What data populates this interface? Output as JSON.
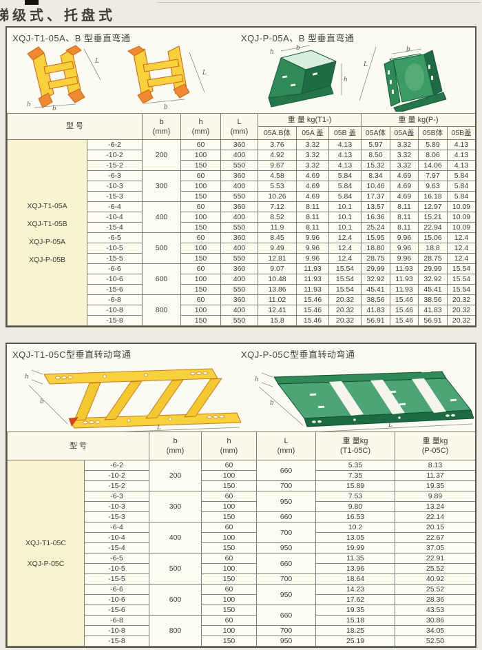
{
  "page": {
    "title": "梯级式、托盘式"
  },
  "dim_labels": {
    "L": "L",
    "b": "b",
    "h": "h"
  },
  "section1": {
    "left_title": "XQJ-T1-05A、B 型垂直弯通",
    "right_title": "XQJ-P-05A、B 型垂直弯通"
  },
  "table1": {
    "headers": {
      "model": "型  号",
      "b": [
        "b",
        "(mm)"
      ],
      "h": [
        "h",
        "(mm)"
      ],
      "L": [
        "L",
        "(mm)"
      ],
      "t1_group": "重 量 kg(T1-)",
      "t1_cols": [
        "05A.B体",
        "05A 盖",
        "05B 盖"
      ],
      "p_group": "重 量 kg(P-)",
      "p_cols": [
        "05A体",
        "05A盖",
        "05B体",
        "05B盖"
      ]
    },
    "models": [
      "XQJ-T1-05A",
      "XQJ-T1-05B",
      "XQJ-P-05A",
      "XQJ-P-05B"
    ],
    "rows": [
      {
        "suffix": "-6-2",
        "b": "200",
        "h": "60",
        "L": "360",
        "w": [
          "3.76",
          "3.32",
          "4.13",
          "5.97",
          "3.32",
          "5.89",
          "4.13"
        ]
      },
      {
        "suffix": "-10-2",
        "h": "100",
        "L": "400",
        "w": [
          "4.92",
          "3.32",
          "4.13",
          "8.50",
          "3.32",
          "8.06",
          "4.13"
        ]
      },
      {
        "suffix": "-15-2",
        "h": "150",
        "L": "550",
        "w": [
          "9.67",
          "3.32",
          "4.13",
          "15.32",
          "3.32",
          "14.06",
          "4.13"
        ]
      },
      {
        "suffix": "-6-3",
        "b": "300",
        "h": "60",
        "L": "360",
        "w": [
          "4.58",
          "4.69",
          "5.84",
          "8.34",
          "4.69",
          "7.97",
          "5.84"
        ]
      },
      {
        "suffix": "-10-3",
        "h": "100",
        "L": "400",
        "w": [
          "5.53",
          "4.69",
          "5.84",
          "10.46",
          "4.69",
          "9.63",
          "5.84"
        ]
      },
      {
        "suffix": "-15-3",
        "h": "150",
        "L": "550",
        "w": [
          "10.26",
          "4.69",
          "5.84",
          "17.37",
          "4.69",
          "16.18",
          "5.84"
        ]
      },
      {
        "suffix": "-6-4",
        "b": "400",
        "h": "60",
        "L": "360",
        "w": [
          "7.12",
          "8.11",
          "10.1",
          "13.57",
          "8.11",
          "12.97",
          "10.09"
        ]
      },
      {
        "suffix": "-10-4",
        "h": "100",
        "L": "400",
        "w": [
          "8.52",
          "8.11",
          "10.1",
          "16.36",
          "8.11",
          "15.21",
          "10.09"
        ]
      },
      {
        "suffix": "-15-4",
        "h": "150",
        "L": "550",
        "w": [
          "11.9",
          "8.11",
          "10.1",
          "25.24",
          "8.11",
          "22.94",
          "10.09"
        ]
      },
      {
        "suffix": "-6-5",
        "b": "500",
        "h": "60",
        "L": "360",
        "w": [
          "8.45",
          "9.96",
          "12.4",
          "15.95",
          "9.96",
          "15.06",
          "12.4"
        ]
      },
      {
        "suffix": "-10-5",
        "h": "100",
        "L": "400",
        "w": [
          "9.49",
          "9.96",
          "12.4",
          "18.80",
          "9.96",
          "18.8",
          "12.4"
        ]
      },
      {
        "suffix": "-15-5",
        "h": "150",
        "L": "550",
        "w": [
          "12.81",
          "9.96",
          "12.4",
          "28.75",
          "9.96",
          "28.75",
          "12.4"
        ]
      },
      {
        "suffix": "-6-6",
        "b": "600",
        "h": "60",
        "L": "360",
        "w": [
          "9.07",
          "11.93",
          "15.54",
          "29.99",
          "11.93",
          "29.99",
          "15.54"
        ]
      },
      {
        "suffix": "-10-6",
        "h": "100",
        "L": "400",
        "w": [
          "10.48",
          "11.93",
          "15.54",
          "32.92",
          "11.93",
          "32.92",
          "15.54"
        ]
      },
      {
        "suffix": "-15-6",
        "h": "150",
        "L": "550",
        "w": [
          "13.86",
          "11.93",
          "15.54",
          "45.41",
          "11.93",
          "45.41",
          "15.54"
        ]
      },
      {
        "suffix": "-6-8",
        "b": "800",
        "h": "60",
        "L": "360",
        "w": [
          "11.02",
          "15.46",
          "20.32",
          "38.56",
          "15.46",
          "38.56",
          "20.32"
        ]
      },
      {
        "suffix": "-10-8",
        "h": "100",
        "L": "400",
        "w": [
          "12.41",
          "15.46",
          "20.32",
          "41.83",
          "15.46",
          "41.83",
          "20.32"
        ]
      },
      {
        "suffix": "-15-8",
        "h": "150",
        "L": "550",
        "w": [
          "15.8",
          "15.46",
          "20.32",
          "56.91",
          "15.46",
          "56.91",
          "20.32"
        ]
      }
    ]
  },
  "section2": {
    "left_title": "XQJ-T1-05C型垂直转动弯通",
    "right_title": "XQJ-P-05C型垂直转动弯通"
  },
  "table2": {
    "headers": {
      "model": "型  号",
      "b": [
        "b",
        "(mm)"
      ],
      "h": [
        "h",
        "(mm)"
      ],
      "L": [
        "L",
        "(mm)"
      ],
      "t1": [
        "重 量kg",
        "(T1-05C)"
      ],
      "p": [
        "重 量kg",
        "(P-05C)"
      ]
    },
    "models": [
      "XQJ-T1-05C",
      "XQJ-P-05C"
    ],
    "rows": [
      {
        "suffix": "-6-2",
        "b": "200",
        "h": "60",
        "L": "660",
        "L_span": 2,
        "w": [
          "5.35",
          "8.13"
        ]
      },
      {
        "suffix": "-10-2",
        "h": "100",
        "w": [
          "7.35",
          "11.37"
        ]
      },
      {
        "suffix": "-15-2",
        "h": "150",
        "L": "700",
        "L_span": 1,
        "w": [
          "15.89",
          "19.35"
        ]
      },
      {
        "suffix": "-6-3",
        "b": "300",
        "h": "60",
        "L": "950",
        "L_span": 2,
        "w": [
          "7.53",
          "9.89"
        ]
      },
      {
        "suffix": "-10-3",
        "h": "100",
        "w": [
          "9.80",
          "13.24"
        ]
      },
      {
        "suffix": "-15-3",
        "h": "150",
        "L": "660",
        "L_span": 1,
        "w": [
          "16.53",
          "22.14"
        ]
      },
      {
        "suffix": "-6-4",
        "b": "400",
        "h": "60",
        "L": "700",
        "L_span": 2,
        "w": [
          "10.2",
          "20.15"
        ]
      },
      {
        "suffix": "-10-4",
        "h": "100",
        "w": [
          "13.05",
          "22.67"
        ]
      },
      {
        "suffix": "-15-4",
        "h": "150",
        "L": "950",
        "L_span": 1,
        "w": [
          "19.99",
          "37.05"
        ]
      },
      {
        "suffix": "-6-5",
        "b": "500",
        "h": "60",
        "L": "660",
        "L_span": 2,
        "w": [
          "11.35",
          "22.91"
        ]
      },
      {
        "suffix": "-10-5",
        "h": "100",
        "w": [
          "13.96",
          "25.52"
        ]
      },
      {
        "suffix": "-15-5",
        "h": "150",
        "L": "700",
        "L_span": 1,
        "w": [
          "18.64",
          "40.92"
        ]
      },
      {
        "suffix": "-6-6",
        "b": "600",
        "h": "60",
        "L": "950",
        "L_span": 2,
        "w": [
          "14.23",
          "25.52"
        ]
      },
      {
        "suffix": "-10-6",
        "h": "100",
        "w": [
          "17.62",
          "28.36"
        ]
      },
      {
        "suffix": "-15-6",
        "h": "150",
        "L": "660",
        "L_span": 2,
        "w": [
          "19.35",
          "43.53"
        ]
      },
      {
        "suffix": "-6-8",
        "b": "800",
        "h": "60",
        "w": [
          "15.18",
          "30.86"
        ]
      },
      {
        "suffix": "-10-8",
        "h": "100",
        "L": "700",
        "L_span": 1,
        "w": [
          "18.25",
          "34.05"
        ]
      },
      {
        "suffix": "-15-8",
        "h": "150",
        "L": "950",
        "L_span": 1,
        "w": [
          "25.19",
          "52.50"
        ]
      }
    ]
  }
}
